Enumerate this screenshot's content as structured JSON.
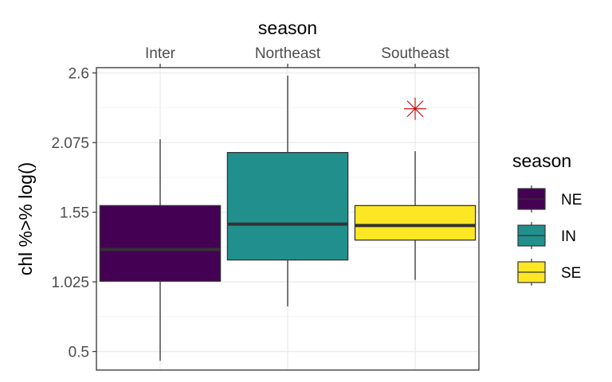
{
  "chart_data": {
    "type": "boxplot",
    "top_axis_title": "season",
    "ylabel": "chl %>% log()",
    "ylim": [
      0.36,
      2.64
    ],
    "yticks": [
      0.5,
      1.025,
      1.55,
      2.075,
      2.6
    ],
    "ytick_labels": [
      "0.5",
      "1.025",
      "1.55",
      "2.075",
      "2.6"
    ],
    "categories": [
      "Inter",
      "Northeast",
      "Southeast"
    ],
    "grid": true,
    "boxes": [
      {
        "category": "Inter",
        "group": "NE",
        "whisker_low": 0.43,
        "q1": 1.03,
        "median": 1.27,
        "q3": 1.6,
        "whisker_high": 2.1,
        "outliers": []
      },
      {
        "category": "Northeast",
        "group": "IN",
        "whisker_low": 0.84,
        "q1": 1.19,
        "median": 1.46,
        "q3": 2.0,
        "whisker_high": 2.58,
        "outliers": []
      },
      {
        "category": "Southeast",
        "group": "SE",
        "whisker_low": 1.04,
        "q1": 1.34,
        "median": 1.45,
        "q3": 1.6,
        "whisker_high": 2.01,
        "outliers": [
          2.33
        ]
      }
    ],
    "legend": {
      "title": "season",
      "position": "right",
      "entries": [
        {
          "label": "NE",
          "color": "#440154"
        },
        {
          "label": "IN",
          "color": "#21908C"
        },
        {
          "label": "SE",
          "color": "#FDE725"
        }
      ]
    },
    "outlier_color": "#CC0000",
    "median_color": "#333333"
  }
}
